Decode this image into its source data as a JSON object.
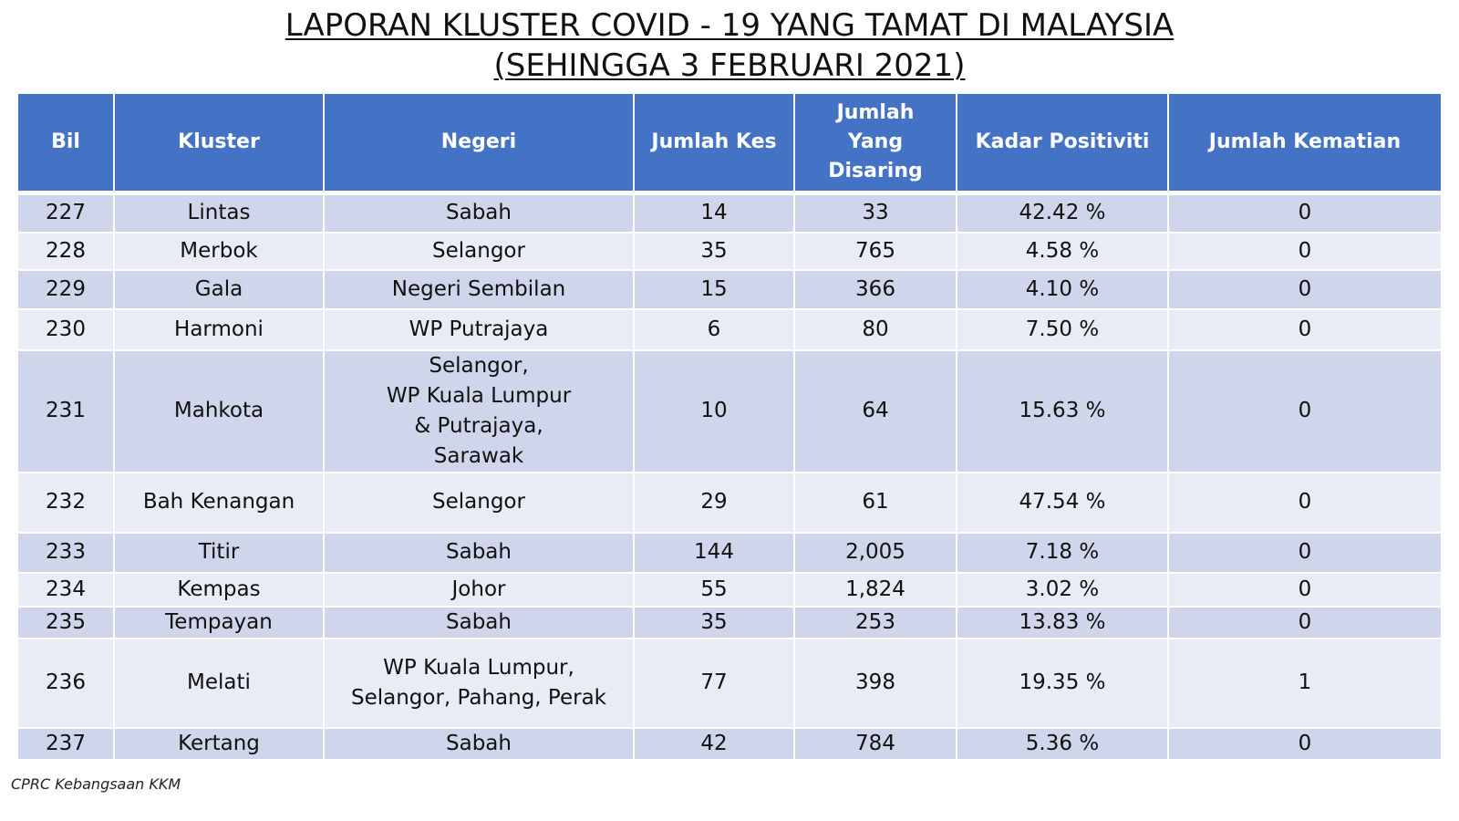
{
  "title": {
    "line1": "LAPORAN KLUSTER COVID - 19 YANG TAMAT DI MALAYSIA",
    "line2": "(SEHINGGA 3 FEBRUARI 2021)"
  },
  "table": {
    "headers": [
      "Bil",
      "Kluster",
      "Negeri",
      "Jumlah Kes",
      "Jumlah Yang Disaring",
      "Kadar Positiviti",
      "Jumlah Kematian"
    ],
    "rows": [
      {
        "bil": "227",
        "kluster": "Lintas",
        "negeri": [
          "Sabah"
        ],
        "kes": "14",
        "disaring": "33",
        "positiviti": "42.42 %",
        "kematian": "0"
      },
      {
        "bil": "228",
        "kluster": "Merbok",
        "negeri": [
          "Selangor"
        ],
        "kes": "35",
        "disaring": "765",
        "positiviti": "4.58 %",
        "kematian": "0"
      },
      {
        "bil": "229",
        "kluster": "Gala",
        "negeri": [
          "Negeri Sembilan"
        ],
        "kes": "15",
        "disaring": "366",
        "positiviti": "4.10 %",
        "kematian": "0"
      },
      {
        "bil": "230",
        "kluster": "Harmoni",
        "negeri": [
          "WP Putrajaya"
        ],
        "kes": "6",
        "disaring": "80",
        "positiviti": "7.50 %",
        "kematian": "0"
      },
      {
        "bil": "231",
        "kluster": "Mahkota",
        "negeri": [
          "Selangor,",
          "WP Kuala Lumpur",
          "& Putrajaya,",
          "Sarawak"
        ],
        "kes": "10",
        "disaring": "64",
        "positiviti": "15.63 %",
        "kematian": "0"
      },
      {
        "bil": "232",
        "kluster": "Bah Kenangan",
        "negeri": [
          "Selangor"
        ],
        "kes": "29",
        "disaring": "61",
        "positiviti": "47.54 %",
        "kematian": "0"
      },
      {
        "bil": "233",
        "kluster": "Titir",
        "negeri": [
          "Sabah"
        ],
        "kes": "144",
        "disaring": "2,005",
        "positiviti": "7.18 %",
        "kematian": "0"
      },
      {
        "bil": "234",
        "kluster": "Kempas",
        "negeri": [
          "Johor"
        ],
        "kes": "55",
        "disaring": "1,824",
        "positiviti": "3.02 %",
        "kematian": "0"
      },
      {
        "bil": "235",
        "kluster": "Tempayan",
        "negeri": [
          "Sabah"
        ],
        "kes": "35",
        "disaring": "253",
        "positiviti": "13.83 %",
        "kematian": "0"
      },
      {
        "bil": "236",
        "kluster": "Melati",
        "negeri": [
          "WP Kuala Lumpur,",
          "Selangor, Pahang, Perak"
        ],
        "kes": "77",
        "disaring": "398",
        "positiviti": "19.35 %",
        "kematian": "1"
      },
      {
        "bil": "237",
        "kluster": "Kertang",
        "negeri": [
          "Sabah"
        ],
        "kes": "42",
        "disaring": "784",
        "positiviti": "5.36 %",
        "kematian": "0"
      }
    ]
  },
  "footer": "CPRC Kebangsaan KKM",
  "colors": {
    "header_bg": "#4472c4",
    "row_dark": "#cfd5ea",
    "row_light": "#e9ebf5"
  }
}
